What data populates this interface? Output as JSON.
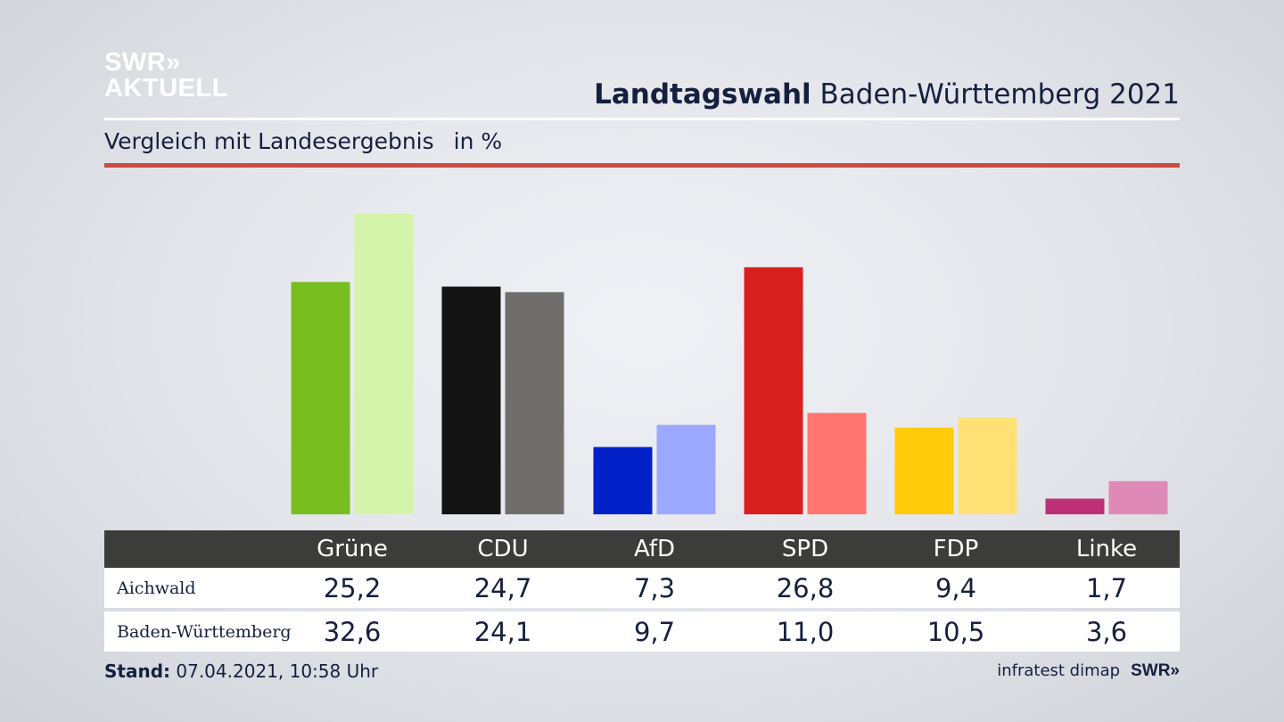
{
  "logo": {
    "line1": "SWR»",
    "line2": "AKTUELL"
  },
  "header": {
    "title_bold": "Landtagswahl",
    "title_rest": "Baden-Württemberg 2021"
  },
  "subtitle": {
    "text": "Vergleich mit Landesergebnis",
    "unit": "in %"
  },
  "chart_data": {
    "type": "bar",
    "title": "Landtagswahl Baden-Württemberg 2021",
    "subtitle": "Vergleich mit Landesergebnis in %",
    "categories": [
      "Grüne",
      "CDU",
      "AfD",
      "SPD",
      "FDP",
      "Linke"
    ],
    "series": [
      {
        "name": "Aichwald",
        "values": [
          "25,2",
          "24,7",
          "7,3",
          "26,8",
          "9,4",
          "1,7"
        ],
        "numeric": [
          25.2,
          24.7,
          7.3,
          26.8,
          9.4,
          1.7
        ]
      },
      {
        "name": "Baden-Württemberg",
        "values": [
          "32,6",
          "24,1",
          "9,7",
          "11,0",
          "10,5",
          "3,6"
        ],
        "numeric": [
          32.6,
          24.1,
          9.7,
          11.0,
          10.5,
          3.6
        ]
      }
    ],
    "colors": {
      "Grüne": [
        "#78be1e",
        "#d4f4a9"
      ],
      "CDU": [
        "#141414",
        "#6f6e6c"
      ],
      "AfD": [
        "#0021c8",
        "#9da9ff"
      ],
      "SPD": [
        "#d71f1f",
        "#ff7670"
      ],
      "FDP": [
        "#ffcb0a",
        "#ffe176"
      ],
      "Linke": [
        "#be3075",
        "#de89b6"
      ]
    },
    "ylim": [
      0,
      35
    ]
  },
  "footer": {
    "stand_label": "Stand:",
    "stand_value": "07.04.2021, 10:58 Uhr",
    "source": "infratest dimap",
    "brand": "SWR»"
  }
}
